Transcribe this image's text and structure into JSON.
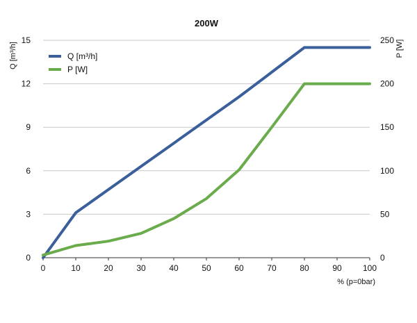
{
  "chart_data": {
    "type": "line",
    "title": "200W",
    "xlabel": "% (p=0bar)",
    "ylabel": "Q [m³/h]",
    "y2label": "P [W]",
    "x": [
      0,
      10,
      20,
      30,
      40,
      50,
      60,
      70,
      80,
      90,
      100
    ],
    "xticks": [
      "0",
      "10",
      "20",
      "30",
      "40",
      "50",
      "60",
      "70",
      "80",
      "90",
      "100"
    ],
    "xlim": [
      0,
      100
    ],
    "ylim": [
      0,
      15
    ],
    "yticks": [
      "0",
      "3",
      "6",
      "9",
      "12",
      "15"
    ],
    "y2lim": [
      0,
      250
    ],
    "y2ticks": [
      "0",
      "50",
      "100",
      "150",
      "200",
      "250"
    ],
    "grid": true,
    "legend_position": "top-left",
    "series": [
      {
        "name": "Q [m³/h]",
        "axis": "left",
        "color": "#3a5f9a",
        "points": [
          [
            0,
            0
          ],
          [
            10,
            3.1
          ],
          [
            20,
            4.7
          ],
          [
            30,
            6.3
          ],
          [
            40,
            7.9
          ],
          [
            50,
            9.5
          ],
          [
            60,
            11.1
          ],
          [
            70,
            12.8
          ],
          [
            80,
            14.5
          ],
          [
            90,
            14.5
          ],
          [
            100,
            14.5
          ]
        ]
      },
      {
        "name": "P [W]",
        "axis": "right",
        "color": "#6aab4b",
        "points": [
          [
            0,
            3
          ],
          [
            10,
            14
          ],
          [
            20,
            19
          ],
          [
            30,
            28
          ],
          [
            40,
            45
          ],
          [
            50,
            68
          ],
          [
            60,
            101
          ],
          [
            70,
            150
          ],
          [
            80,
            200
          ],
          [
            90,
            200
          ],
          [
            100,
            200
          ]
        ]
      }
    ]
  }
}
